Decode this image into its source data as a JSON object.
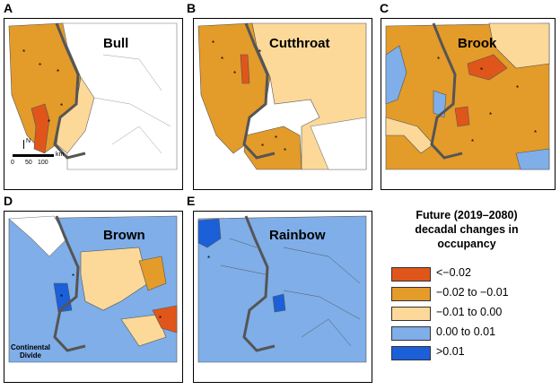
{
  "panels": [
    {
      "letter": "A",
      "species": "Bull"
    },
    {
      "letter": "B",
      "species": "Cutthroat"
    },
    {
      "letter": "C",
      "species": "Brook"
    },
    {
      "letter": "D",
      "species": "Brown"
    },
    {
      "letter": "E",
      "species": "Rainbow"
    }
  ],
  "legend": {
    "title_lines": [
      "Future (2019–2080)",
      "decadal changes in",
      "occupancy"
    ],
    "items": [
      {
        "label": "<−0.02",
        "color": "#e0561a"
      },
      {
        "label": "−0.02 to −0.01",
        "color": "#e39b2a"
      },
      {
        "label": "−0.01 to 0.00",
        "color": "#fcd999"
      },
      {
        "label": "0.00 to 0.01",
        "color": "#7faee8"
      },
      {
        "label": ">0.01",
        "color": "#1b5fd9"
      }
    ]
  },
  "scale_bar": {
    "ticks": [
      "0",
      "50",
      "100"
    ],
    "unit": "km",
    "north": "N"
  },
  "annotation": {
    "line1": "Continental",
    "line2": "Divide"
  }
}
